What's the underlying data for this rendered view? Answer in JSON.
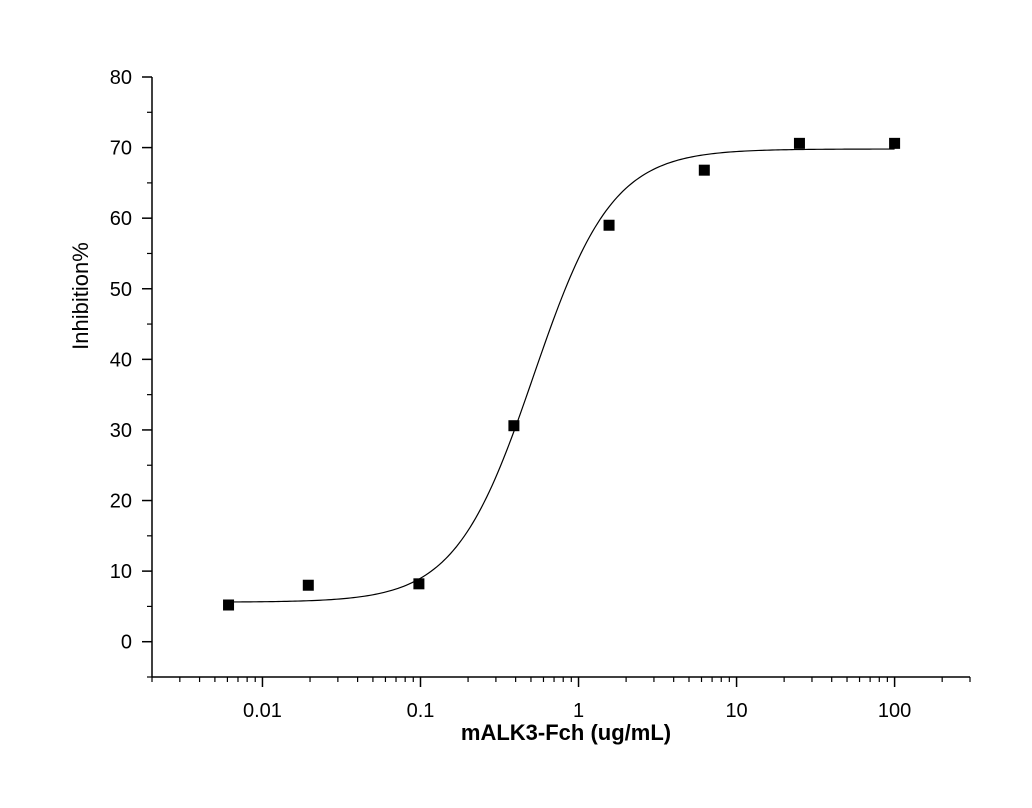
{
  "chart_data": {
    "type": "scatter",
    "title": "",
    "xlabel": "mALK3-Fch (ug/mL)",
    "ylabel": "Inhibition%",
    "x_scale": "log",
    "xlim": [
      0.002,
      300
    ],
    "ylim": [
      -5,
      80
    ],
    "x_ticks": [
      0.01,
      0.1,
      1,
      10,
      100
    ],
    "x_tick_labels": [
      "0.01",
      "0.1",
      "1",
      "10",
      "100"
    ],
    "y_ticks": [
      0,
      10,
      20,
      30,
      40,
      50,
      60,
      70,
      80
    ],
    "y_tick_labels": [
      "0",
      "10",
      "20",
      "30",
      "40",
      "50",
      "60",
      "70",
      "80"
    ],
    "grid": false,
    "legend": "none",
    "series": [
      {
        "kind": "points",
        "marker": "square",
        "color": "#000000",
        "x": [
          0.0061,
          0.0195,
          0.0977,
          0.39,
          1.56,
          6.25,
          25,
          100
        ],
        "y": [
          5.2,
          8.0,
          8.2,
          30.6,
          59.0,
          66.8,
          70.6,
          70.6
        ]
      },
      {
        "kind": "fit",
        "model": "four-parameter logistic",
        "color": "#000000",
        "bottom": 5.6,
        "top": 69.8,
        "ec50": 0.52,
        "hill": 1.75
      }
    ]
  }
}
